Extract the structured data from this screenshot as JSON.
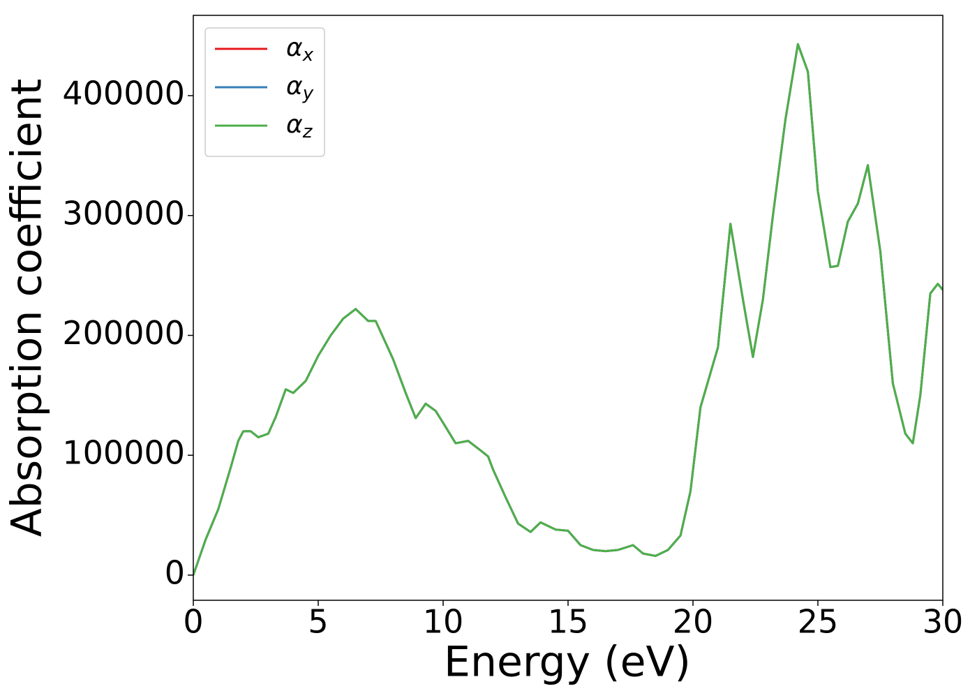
{
  "chart_data": {
    "type": "line",
    "xlabel": "Energy (eV)",
    "ylabel": "Absorption coefficient",
    "x": [
      0,
      0.25,
      0.5,
      1.0,
      1.5,
      1.8,
      2.0,
      2.3,
      2.6,
      3.0,
      3.3,
      3.7,
      4.0,
      4.5,
      5.0,
      5.5,
      6.0,
      6.5,
      7.0,
      7.3,
      8.0,
      8.5,
      8.9,
      9.3,
      9.7,
      10.0,
      10.5,
      11.0,
      11.5,
      11.8,
      12.0,
      12.5,
      13.0,
      13.5,
      13.9,
      14.5,
      15.0,
      15.5,
      16.0,
      16.5,
      17.0,
      17.6,
      18.0,
      18.5,
      19.0,
      19.5,
      19.9,
      20.3,
      21.0,
      21.5,
      22.0,
      22.4,
      22.8,
      23.2,
      23.7,
      24.2,
      24.6,
      25.0,
      25.5,
      25.8,
      26.2,
      26.6,
      27.0,
      27.5,
      28.0,
      28.5,
      28.8,
      29.1,
      29.5,
      29.8,
      30.0
    ],
    "series": [
      {
        "name": "αx",
        "color": "#e41a1c",
        "values": [
          0,
          15000,
          30000,
          55000,
          90000,
          112000,
          120000,
          120000,
          115000,
          118000,
          132000,
          155000,
          152000,
          162000,
          183000,
          200000,
          214000,
          222000,
          212000,
          212000,
          180000,
          152000,
          131000,
          143000,
          137000,
          127000,
          110000,
          112000,
          104000,
          99000,
          88000,
          65000,
          43000,
          36000,
          44000,
          38000,
          37000,
          25000,
          21000,
          20000,
          21000,
          25000,
          18000,
          16000,
          21000,
          33000,
          70000,
          140000,
          190000,
          293000,
          230000,
          182000,
          230000,
          300000,
          380000,
          443000,
          420000,
          320000,
          257000,
          258000,
          295000,
          310000,
          342000,
          270000,
          160000,
          118000,
          110000,
          150000,
          235000,
          243000,
          238000
        ]
      },
      {
        "name": "αy",
        "color": "#377eb8",
        "values": [
          0,
          15000,
          30000,
          55000,
          90000,
          112000,
          120000,
          120000,
          115000,
          118000,
          132000,
          155000,
          152000,
          162000,
          183000,
          200000,
          214000,
          222000,
          212000,
          212000,
          180000,
          152000,
          131000,
          143000,
          137000,
          127000,
          110000,
          112000,
          104000,
          99000,
          88000,
          65000,
          43000,
          36000,
          44000,
          38000,
          37000,
          25000,
          21000,
          20000,
          21000,
          25000,
          18000,
          16000,
          21000,
          33000,
          70000,
          140000,
          190000,
          293000,
          230000,
          182000,
          230000,
          300000,
          380000,
          443000,
          420000,
          320000,
          257000,
          258000,
          295000,
          310000,
          342000,
          270000,
          160000,
          118000,
          110000,
          150000,
          235000,
          243000,
          238000
        ]
      },
      {
        "name": "αz",
        "color": "#4daf4a",
        "values": [
          0,
          15000,
          30000,
          55000,
          90000,
          112000,
          120000,
          120000,
          115000,
          118000,
          132000,
          155000,
          152000,
          162000,
          183000,
          200000,
          214000,
          222000,
          212000,
          212000,
          180000,
          152000,
          131000,
          143000,
          137000,
          127000,
          110000,
          112000,
          104000,
          99000,
          88000,
          65000,
          43000,
          36000,
          44000,
          38000,
          37000,
          25000,
          21000,
          20000,
          21000,
          25000,
          18000,
          16000,
          21000,
          33000,
          70000,
          140000,
          190000,
          293000,
          230000,
          182000,
          230000,
          300000,
          380000,
          443000,
          420000,
          320000,
          257000,
          258000,
          295000,
          310000,
          342000,
          270000,
          160000,
          118000,
          110000,
          150000,
          235000,
          243000,
          238000
        ]
      }
    ],
    "xlim": [
      0,
      30
    ],
    "xticks": [
      0,
      5,
      10,
      15,
      20,
      25,
      30
    ],
    "ylim": [
      -21000,
      467000
    ],
    "yticks": [
      0,
      100000,
      200000,
      300000,
      400000
    ],
    "legend": "upper left",
    "grid": false
  }
}
